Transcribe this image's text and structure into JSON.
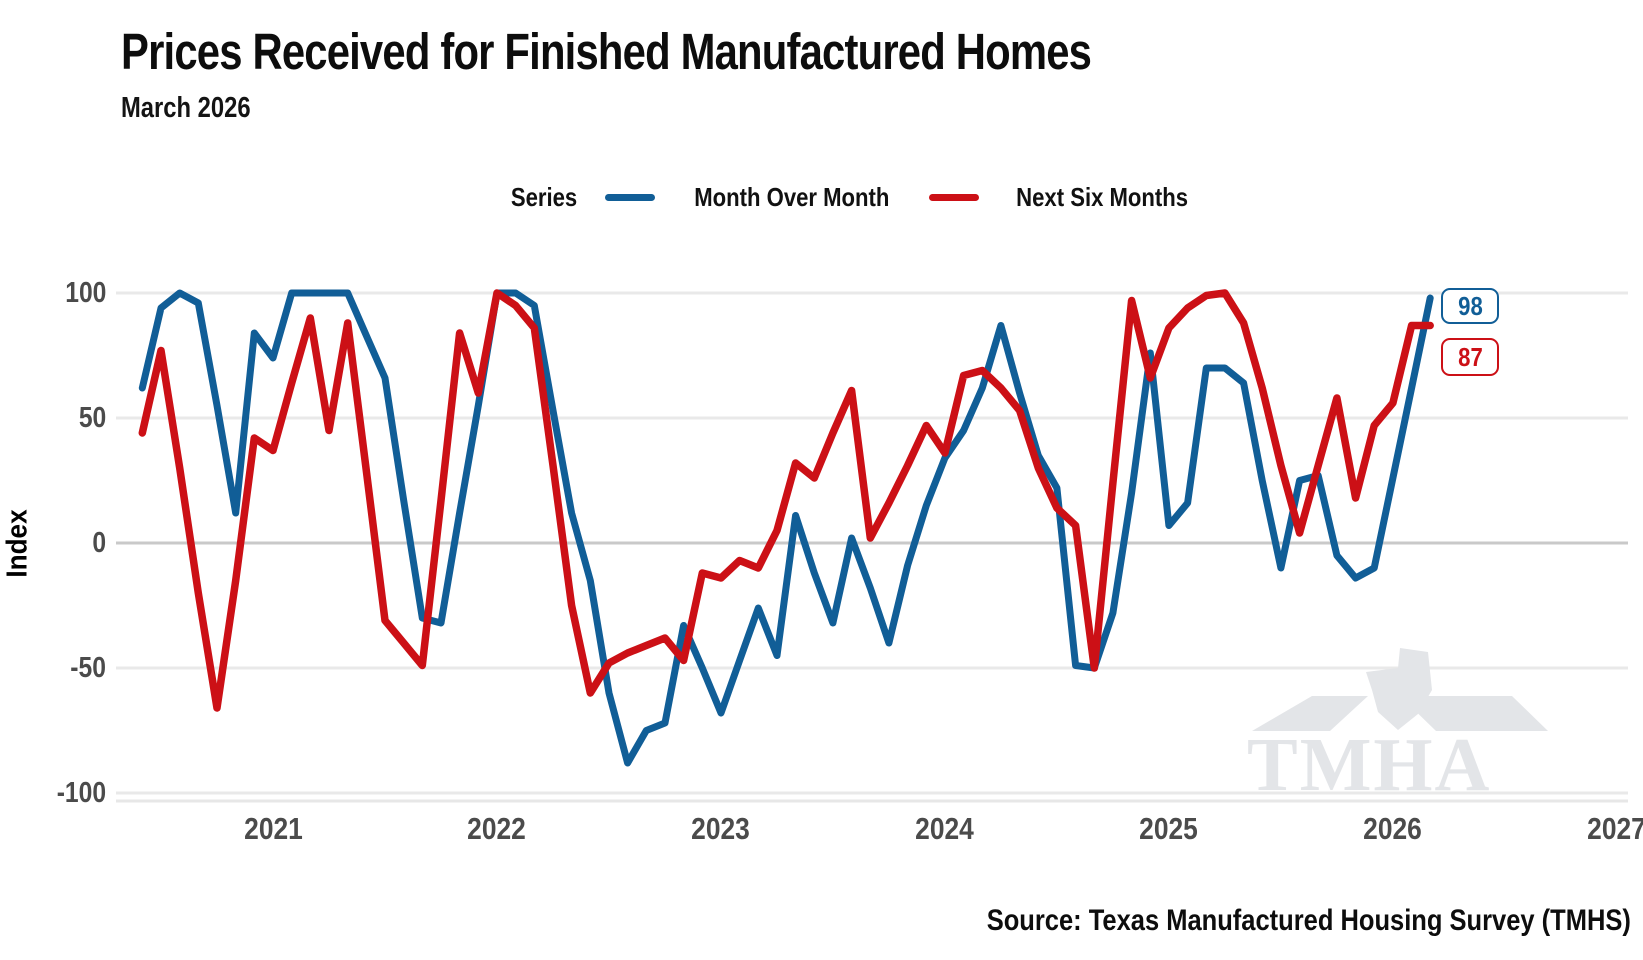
{
  "title": "Prices Received for Finished Manufactured Homes",
  "subtitle": "March 2026",
  "source": "Source: Texas Manufactured Housing Survey (TMHS)",
  "watermark": "TMHA",
  "legend": {
    "label": "Series",
    "items": [
      {
        "name": "Month Over Month",
        "color": "#115e97"
      },
      {
        "name": "Next Six Months",
        "color": "#cc1016"
      }
    ]
  },
  "end_labels": [
    {
      "value": "98",
      "color": "#115e97"
    },
    {
      "value": "87",
      "color": "#cc1016"
    }
  ],
  "chart_data": {
    "type": "line",
    "title": "Prices Received for Finished Manufactured Homes",
    "subtitle": "March 2026",
    "xlabel": "",
    "ylabel": "Index",
    "ylim": [
      -104,
      104
    ],
    "grid": "horizontal",
    "legend_position": "top-center",
    "y_ticks": [
      100,
      50,
      0,
      -50,
      -100
    ],
    "x_ticks": [
      "2021",
      "2022",
      "2023",
      "2024",
      "2025",
      "2026",
      "2027"
    ],
    "x_start": "2020-06",
    "x_end": "2026-03",
    "frequency": "monthly",
    "series": [
      {
        "name": "Month Over Month",
        "color": "#115e97",
        "last_value": 98,
        "values": [
          62,
          94,
          100,
          96,
          55,
          12,
          84,
          74,
          100,
          100,
          100,
          100,
          83,
          66,
          17,
          -30,
          -32,
          12,
          55,
          100,
          100,
          95,
          53,
          12,
          -15,
          -60,
          -88,
          -75,
          -72,
          -33,
          -50,
          -68,
          -47,
          -26,
          -45,
          11,
          -12,
          -32,
          2,
          -18,
          -40,
          -9,
          15,
          34,
          45,
          62,
          87,
          60,
          35,
          22,
          -49,
          -50,
          -28,
          20,
          76,
          7,
          16,
          70,
          70,
          64,
          25,
          -10,
          25,
          27,
          -5,
          -14,
          -10,
          26,
          62,
          98
        ]
      },
      {
        "name": "Next Six Months",
        "color": "#cc1016",
        "last_value": 87,
        "values": [
          44,
          77,
          30,
          -20,
          -66,
          -15,
          42,
          37,
          64,
          90,
          45,
          88,
          29,
          -31,
          -40,
          -49,
          17,
          84,
          60,
          100,
          95,
          86,
          31,
          -25,
          -60,
          -48,
          -44,
          -41,
          -38,
          -47,
          -12,
          -14,
          -7,
          -10,
          5,
          32,
          26,
          44,
          61,
          2,
          16,
          31,
          47,
          36,
          67,
          69,
          62,
          53,
          30,
          14,
          7,
          -50,
          24,
          97,
          66,
          86,
          94,
          99,
          100,
          88,
          62,
          31,
          4,
          31,
          58,
          18,
          47,
          56,
          87,
          87
        ]
      }
    ]
  }
}
